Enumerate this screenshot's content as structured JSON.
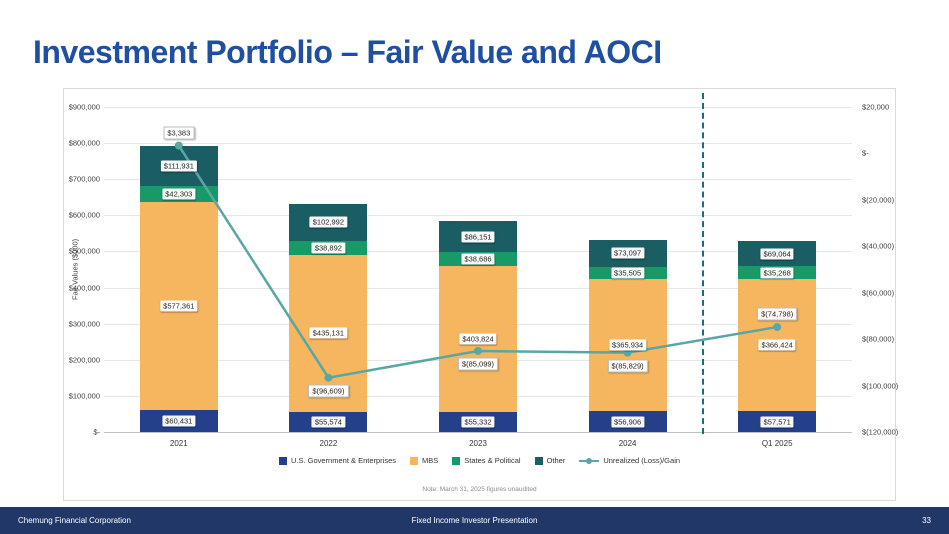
{
  "slide": {
    "title": "Investment Portfolio – Fair Value and AOCI",
    "note": "Note: March 31, 2025 figures unaudited",
    "footer": {
      "left": "Chemung Financial Corporation",
      "center": "Fixed Income Investor Presentation",
      "page_number": "33"
    }
  },
  "colors": {
    "title": "#1e4fa1",
    "footer_bg": "#203768",
    "us_gov": "#24408b",
    "mbs": "#f6b65f",
    "states": "#189a68",
    "other": "#1a5d63",
    "line": "#58a7a3",
    "separator": "#1b6d7a"
  },
  "chart_data": {
    "type": "combo",
    "bar_type": "stacked",
    "categories": [
      "2021",
      "2022",
      "2023",
      "2024",
      "Q1 2025"
    ],
    "ylabel_left": "Fair Values ($000)",
    "left_axis": {
      "min": 0,
      "max": 900000,
      "ticks": [
        "$900,000",
        "$800,000",
        "$700,000",
        "$600,000",
        "$500,000",
        "$400,000",
        "$300,000",
        "$200,000",
        "$100,000",
        "$-"
      ]
    },
    "right_axis": {
      "min": -120000,
      "max": 20000,
      "ticks": [
        "$20,000",
        "$-",
        "$(20,000)",
        "$(40,000)",
        "$(60,000)",
        "$(80,000)",
        "$(100,000)",
        "$(120,000)"
      ]
    },
    "series": [
      {
        "name": "U.S. Government & Enterprises",
        "color_key": "us_gov",
        "values": [
          60431,
          55574,
          55332,
          56906,
          57571
        ],
        "labels": [
          "$60,431",
          "$55,574",
          "$55,332",
          "$56,906",
          "$57,571"
        ]
      },
      {
        "name": "MBS",
        "color_key": "mbs",
        "values": [
          577361,
          435131,
          403824,
          365934,
          366424
        ],
        "labels": [
          "$577,361",
          "$435,131",
          "$403,824",
          "$365,934",
          "$366,424"
        ]
      },
      {
        "name": "States & Political",
        "color_key": "states",
        "values": [
          42303,
          38892,
          38686,
          35505,
          35268
        ],
        "labels": [
          "$42,303",
          "$38,892",
          "$38,686",
          "$35,505",
          "$35,268"
        ]
      },
      {
        "name": "Other",
        "color_key": "other",
        "values": [
          111931,
          102992,
          86151,
          73097,
          69064
        ],
        "labels": [
          "$111,931",
          "$102,992",
          "$86,151",
          "$73,097",
          "$69,064"
        ]
      }
    ],
    "line_series": {
      "name": "Unrealized (Loss)/Gain",
      "color_key": "line",
      "values": [
        3383,
        -96609,
        -85099,
        -85829,
        -74798
      ],
      "labels": [
        "$3,383",
        "$(96,609)",
        "$(85,099)",
        "$(85,829)",
        "$(74,798)"
      ],
      "label_side": [
        "above",
        "below",
        "below",
        "below",
        "above"
      ]
    },
    "separator_after_index": 3,
    "legend": [
      {
        "label": "U.S. Government & Enterprises",
        "color_key": "us_gov",
        "shape": "square"
      },
      {
        "label": "MBS",
        "color_key": "mbs",
        "shape": "square"
      },
      {
        "label": "States & Political",
        "color_key": "states",
        "shape": "square"
      },
      {
        "label": "Other",
        "color_key": "other",
        "shape": "square"
      },
      {
        "label": "Unrealized (Loss)/Gain",
        "color_key": "line",
        "shape": "line"
      }
    ]
  }
}
